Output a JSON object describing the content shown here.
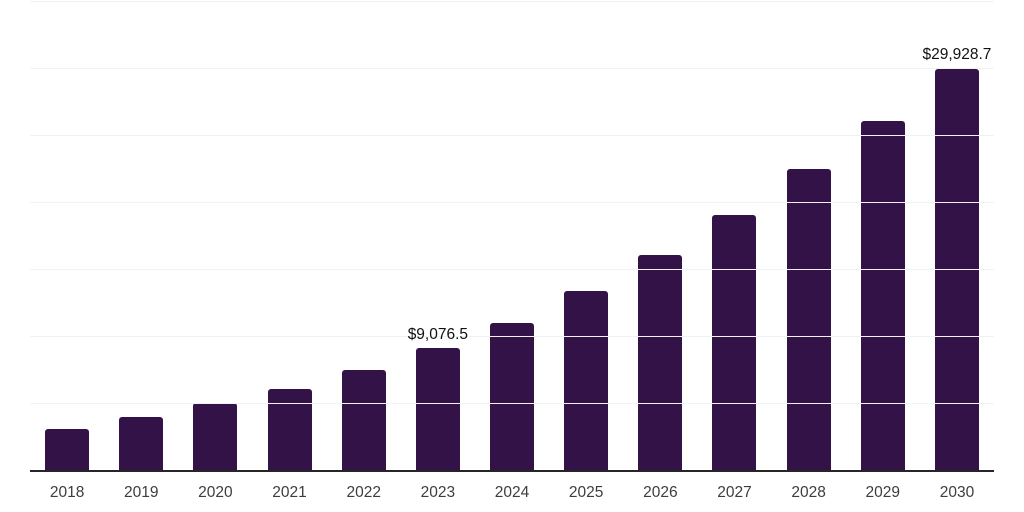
{
  "page": {
    "background": "#ffffff"
  },
  "chart_data": {
    "type": "bar",
    "title": "",
    "xlabel": "",
    "ylabel": "",
    "categories": [
      "2018",
      "2019",
      "2020",
      "2021",
      "2022",
      "2023",
      "2024",
      "2025",
      "2026",
      "2027",
      "2028",
      "2029",
      "2030"
    ],
    "values": [
      3080,
      3980,
      4980,
      6050,
      7460,
      9076.5,
      10950,
      13380,
      16050,
      19050,
      22460,
      26050,
      29928.7
    ],
    "point_labels": [
      "",
      "",
      "",
      "",
      "",
      "$9,076.5",
      "",
      "",
      "",
      "",
      "",
      "",
      "$29,928.7"
    ],
    "ylim": [
      0,
      35000
    ],
    "gridline_step": 5000,
    "grid": true,
    "legend": false,
    "colors": {
      "bar": "#331247",
      "gridline": "#f2f2f2",
      "axis_line": "#262626",
      "tick_label": "#3d3d3d",
      "value_label": "#111111"
    }
  }
}
